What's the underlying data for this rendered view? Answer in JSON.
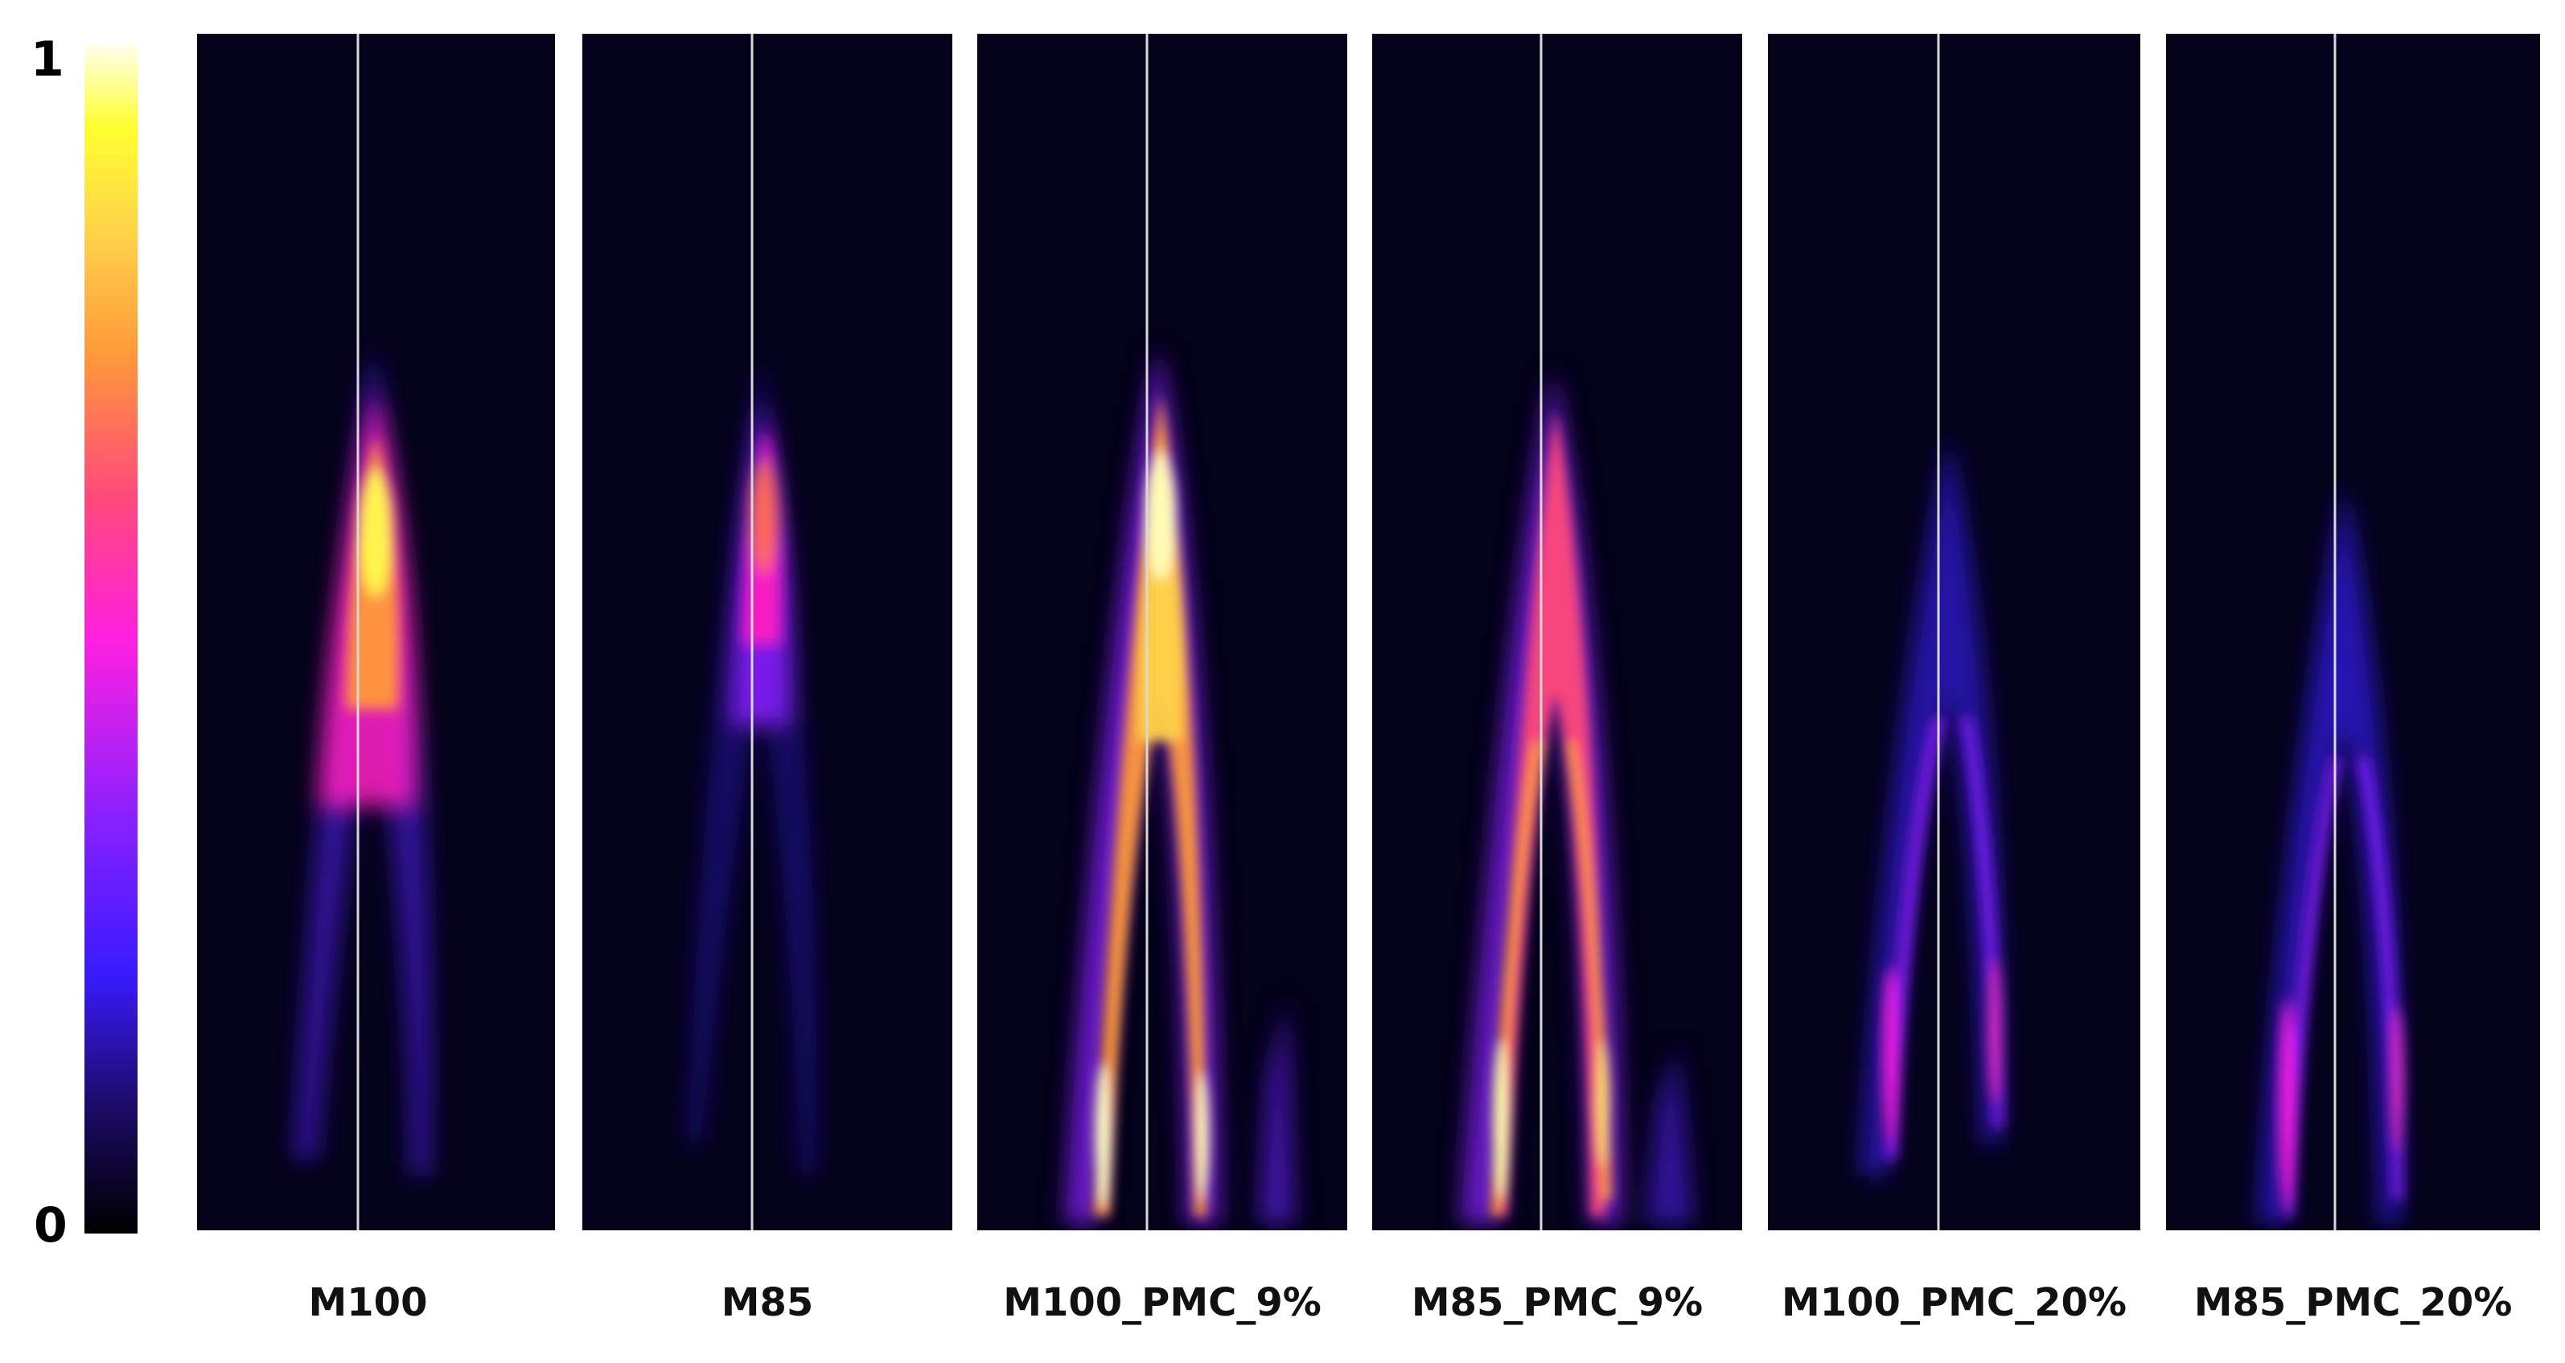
{
  "colorbar": {
    "max_label": "1",
    "min_label": "0",
    "colormap": "plasma-like (black - blue - magenta - orange - yellow - white)",
    "stops": [
      "#000000",
      "#1a0a5e",
      "#3a1bff",
      "#8a20ff",
      "#ff20e0",
      "#ff4a7a",
      "#ff9a3a",
      "#ffd24a",
      "#ffff30",
      "#fffff0"
    ]
  },
  "background_color": "#03021a",
  "centerline_color": "#d8d8d8",
  "panels": [
    {
      "label": "M100",
      "intensity": 0.9,
      "shape": "single-plume"
    },
    {
      "label": "M85",
      "intensity": 0.7,
      "shape": "single-plume"
    },
    {
      "label": "M100_PMC_9%",
      "intensity": 1.0,
      "shape": "split-plume"
    },
    {
      "label": "M85_PMC_9%",
      "intensity": 0.9,
      "shape": "split-plume"
    },
    {
      "label": "M100_PMC_20%",
      "intensity": 0.55,
      "shape": "split-plume"
    },
    {
      "label": "M85_PMC_20%",
      "intensity": 0.6,
      "shape": "split-plume"
    }
  ]
}
